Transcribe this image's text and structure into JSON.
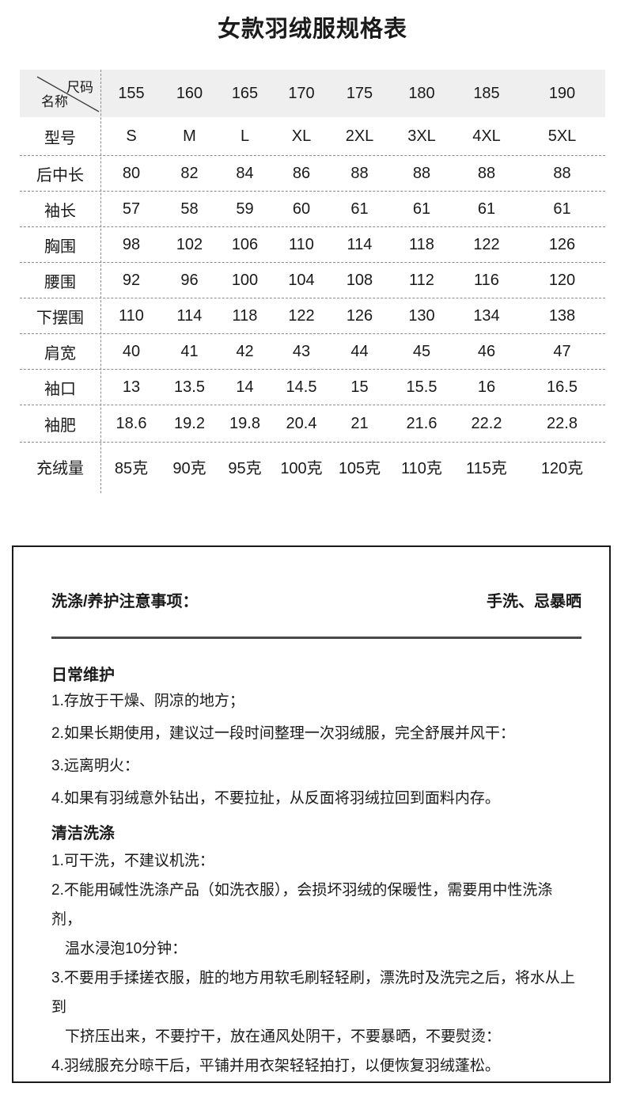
{
  "page": {
    "title": "女款羽绒服规格表"
  },
  "size_table": {
    "corner": {
      "top_right": "尺码",
      "bottom_left": "名称"
    },
    "columns": [
      "155",
      "160",
      "165",
      "170",
      "175",
      "180",
      "185",
      "190"
    ],
    "rows": [
      {
        "label": "型号",
        "values": [
          "S",
          "M",
          "L",
          "XL",
          "2XL",
          "3XL",
          "4XL",
          "5XL"
        ]
      },
      {
        "label": "后中长",
        "values": [
          "80",
          "82",
          "84",
          "86",
          "88",
          "88",
          "88",
          "88"
        ]
      },
      {
        "label": "袖长",
        "values": [
          "57",
          "58",
          "59",
          "60",
          "61",
          "61",
          "61",
          "61"
        ]
      },
      {
        "label": "胸围",
        "values": [
          "98",
          "102",
          "106",
          "110",
          "114",
          "118",
          "122",
          "126"
        ]
      },
      {
        "label": "腰围",
        "values": [
          "92",
          "96",
          "100",
          "104",
          "108",
          "112",
          "116",
          "120"
        ]
      },
      {
        "label": "下摆围",
        "values": [
          "110",
          "114",
          "118",
          "122",
          "126",
          "130",
          "134",
          "138"
        ]
      },
      {
        "label": "肩宽",
        "values": [
          "40",
          "41",
          "42",
          "43",
          "44",
          "45",
          "46",
          "47"
        ]
      },
      {
        "label": "袖口",
        "values": [
          "13",
          "13.5",
          "14",
          "14.5",
          "15",
          "15.5",
          "16",
          "16.5"
        ]
      },
      {
        "label": "袖肥",
        "values": [
          "18.6",
          "19.2",
          "19.8",
          "20.4",
          "21",
          "21.6",
          "22.2",
          "22.8"
        ]
      },
      {
        "label": "充绒量",
        "values": [
          "85克",
          "90克",
          "95克",
          "100克",
          "105克",
          "110克",
          "115克",
          "120克"
        ]
      }
    ]
  },
  "care_box": {
    "heading": "洗涤/养护注意事项：",
    "method": "手洗、忌暴晒",
    "sections": [
      {
        "title": "日常维护",
        "lines": [
          [
            "1.存放于干燥、阴凉的地方；"
          ],
          [
            "2.如果长期使用，建议过一段时间整理一次羽绒服，完全舒展并风干："
          ],
          [
            "3.远离明火："
          ],
          [
            "4.如果有羽绒意外钻出，不要拉扯，从反面将羽绒拉回到面料内存。"
          ]
        ]
      },
      {
        "title": "清洁洗涤",
        "lines": [
          [
            "1.可干洗，不建议机洗："
          ],
          [
            "2.不能用碱性洗涤产品（如洗衣服），会损坏羽绒的保暖性，需要用中性洗涤剂，",
            "温水浸泡10分钟："
          ],
          [
            "3.不要用手揉搓衣服，脏的地方用软毛刷轻轻刷，漂洗时及洗完之后，将水从上到",
            "下挤压出来，不要拧干，放在通风处阴干，不要暴晒，不要熨烫："
          ],
          [
            "4.羽绒服充分晾干后，平铺并用衣架轻轻拍打，以便恢复羽绒蓬松。"
          ]
        ]
      }
    ]
  },
  "colors": {
    "header_bg": "#efefef",
    "box_border": "#1a1a1a",
    "dashed_line": "#8c8c8c",
    "divider": "#4a4a4a",
    "text": "#1a1a1a"
  }
}
